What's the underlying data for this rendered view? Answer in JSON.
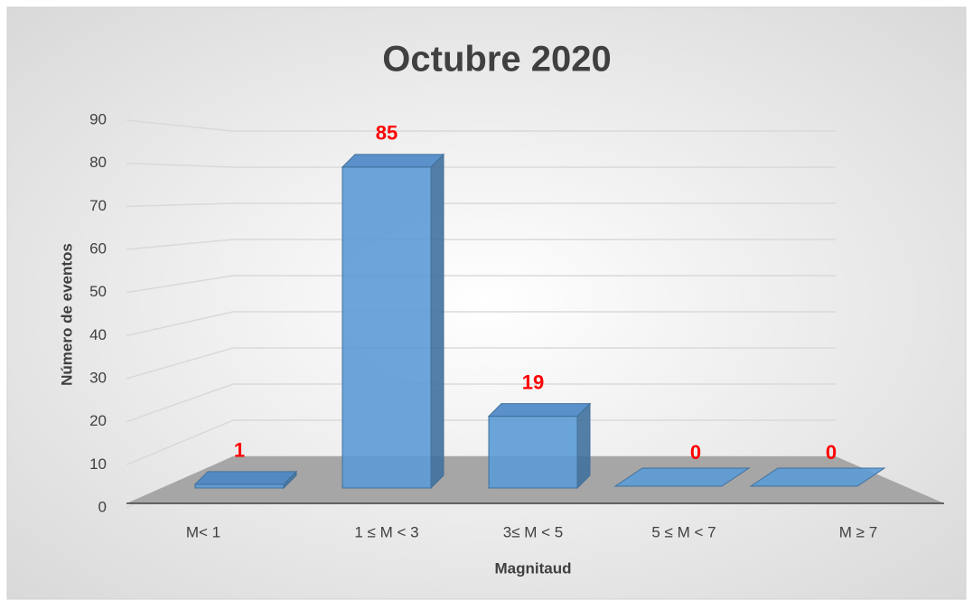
{
  "chart_data": {
    "type": "bar3d",
    "title": "Octubre 2020",
    "x_label": "Magnitaud",
    "y_label": "Número de eventos",
    "categories": [
      "M< 1",
      "1 ≤ M < 3",
      "3≤ M < 5",
      "5 ≤ M < 7",
      "M ≥ 7"
    ],
    "values": [
      1,
      85,
      19,
      0,
      0
    ],
    "color": "#5b9bd5",
    "label_color": "#ff0000",
    "ylim": [
      0,
      90
    ],
    "yticks": [
      0,
      10,
      20,
      30,
      40,
      50,
      60,
      70,
      80,
      90
    ],
    "grid": true
  }
}
